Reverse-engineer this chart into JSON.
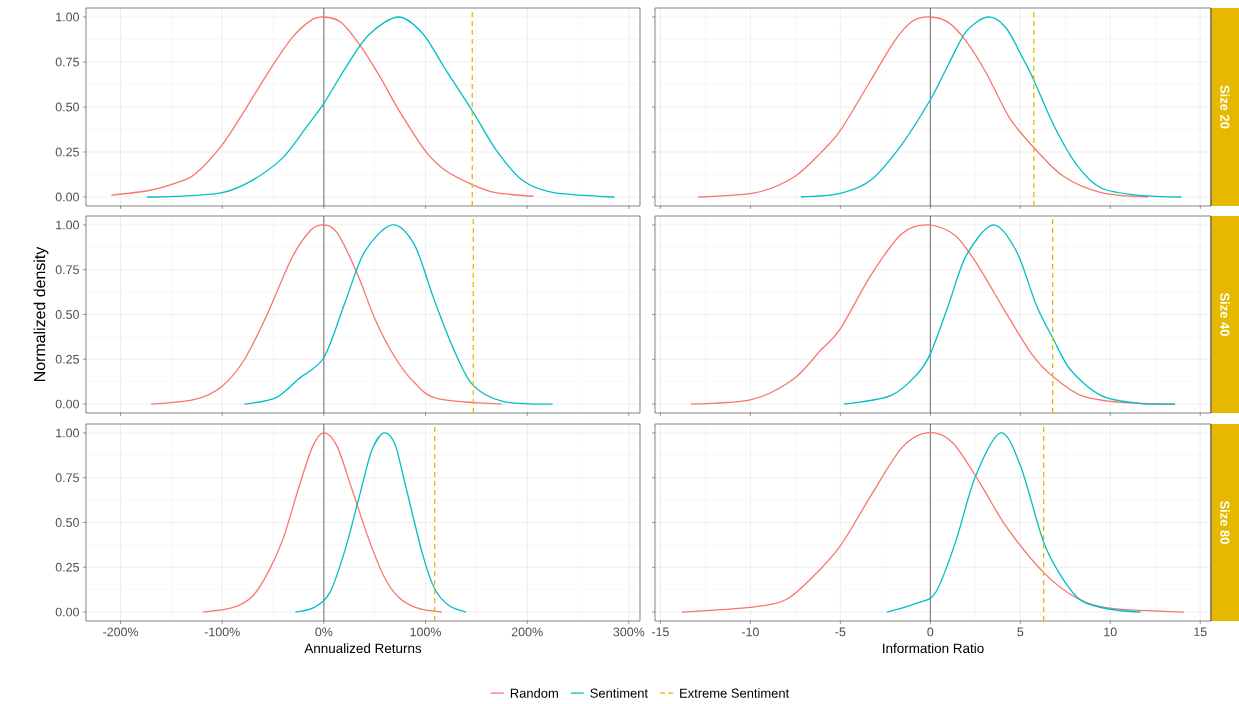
{
  "chart_data": [
    {
      "type": "line",
      "xlim": [
        -234,
        311
      ],
      "ylim": [
        -0.05,
        1.05
      ],
      "grid": true,
      "tick_labels": "y",
      "xticks": [
        {
          "value": -200,
          "label": null
        },
        {
          "value": -100,
          "label": null
        },
        {
          "value": 0,
          "label": null
        },
        {
          "value": 100,
          "label": null
        },
        {
          "value": 200,
          "label": null
        },
        {
          "value": 300,
          "label": null
        }
      ],
      "yticks": [
        {
          "value": 0,
          "label": "0.00"
        },
        {
          "value": 0.25,
          "label": "0.25"
        },
        {
          "value": 0.5,
          "label": "0.50"
        },
        {
          "value": 0.75,
          "label": "0.75"
        },
        {
          "value": 1,
          "label": "1.00"
        }
      ],
      "ref_lines": [
        {
          "axis": "x",
          "value": 0,
          "color": "#4d4d4d"
        }
      ],
      "series": [
        {
          "color": "#f8766d",
          "x": [
            -209,
            -172,
            -146,
            -127,
            -100,
            -78,
            -55,
            -32,
            -13,
            0,
            17,
            36,
            55,
            74,
            100,
            119,
            147,
            169,
            206
          ],
          "values": [
            0.01,
            0.036,
            0.077,
            0.126,
            0.29,
            0.48,
            0.69,
            0.88,
            0.98,
            1.0,
            0.97,
            0.84,
            0.67,
            0.48,
            0.255,
            0.15,
            0.066,
            0.024,
            0.004
          ]
        },
        {
          "color": "#00bfc4",
          "x": [
            -174,
            -146,
            -100,
            -70,
            -40,
            -17,
            0,
            21,
            44,
            73,
            97,
            119,
            147,
            169,
            195,
            225,
            286
          ],
          "values": [
            0.0,
            0.003,
            0.024,
            0.094,
            0.22,
            0.39,
            0.52,
            0.715,
            0.9,
            1.0,
            0.91,
            0.715,
            0.47,
            0.265,
            0.094,
            0.026,
            0.0
          ]
        },
        {
          "color": "#e7b800",
          "line_style": "dashed",
          "x": [
            146,
            146
          ],
          "values": [
            -0.05,
            1.05
          ]
        }
      ]
    },
    {
      "type": "line",
      "annotations": [
        "Size  20"
      ],
      "xlim": [
        -15.3,
        15.6
      ],
      "ylim": [
        -0.05,
        1.05
      ],
      "grid": true,
      "tick_labels": false,
      "xticks": [
        {
          "value": -15,
          "label": null
        },
        {
          "value": -10,
          "label": null
        },
        {
          "value": -5,
          "label": null
        },
        {
          "value": 0,
          "label": null
        },
        {
          "value": 5,
          "label": null
        },
        {
          "value": 10,
          "label": null
        },
        {
          "value": 15,
          "label": null
        }
      ],
      "yticks": [
        {
          "value": 0,
          "label": null
        },
        {
          "value": 0.25,
          "label": null
        },
        {
          "value": 0.5,
          "label": null
        },
        {
          "value": 0.75,
          "label": null
        },
        {
          "value": 1,
          "label": null
        }
      ],
      "ref_lines": [
        {
          "axis": "x",
          "value": 0,
          "color": "#4d4d4d"
        }
      ],
      "series": [
        {
          "color": "#f8766d",
          "x": [
            -12.9,
            -9.7,
            -7.6,
            -6.1,
            -5,
            -3.3,
            -2.0,
            -1.0,
            0,
            1.0,
            2.0,
            3.1,
            4.4,
            5.75,
            7.4,
            9.5,
            12.1
          ],
          "values": [
            0.0,
            0.024,
            0.11,
            0.245,
            0.37,
            0.65,
            0.865,
            0.976,
            1.0,
            0.97,
            0.865,
            0.69,
            0.44,
            0.275,
            0.115,
            0.024,
            0.0
          ]
        },
        {
          "color": "#00bfc4",
          "x": [
            -7.2,
            -5.0,
            -3.3,
            -1.6,
            0,
            1.0,
            2.0,
            3.2,
            4.2,
            5.2,
            5.75,
            6.9,
            8.2,
            9.5,
            11.6,
            13.95
          ],
          "values": [
            0.0,
            0.02,
            0.094,
            0.29,
            0.54,
            0.735,
            0.92,
            1.0,
            0.94,
            0.76,
            0.65,
            0.39,
            0.17,
            0.05,
            0.009,
            0.0
          ]
        },
        {
          "color": "#e7b800",
          "line_style": "dashed",
          "x": [
            5.75,
            5.75
          ],
          "values": [
            -0.05,
            1.05
          ]
        }
      ]
    },
    {
      "type": "line",
      "ylabel": "Normalized density",
      "xlim": [
        -234,
        311
      ],
      "ylim": [
        -0.05,
        1.05
      ],
      "grid": true,
      "tick_labels": "y",
      "xticks": [
        {
          "value": -200,
          "label": null
        },
        {
          "value": -100,
          "label": null
        },
        {
          "value": 0,
          "label": null
        },
        {
          "value": 100,
          "label": null
        },
        {
          "value": 200,
          "label": null
        },
        {
          "value": 300,
          "label": null
        }
      ],
      "yticks": [
        {
          "value": 0,
          "label": "0.00"
        },
        {
          "value": 0.25,
          "label": "0.25"
        },
        {
          "value": 0.5,
          "label": "0.50"
        },
        {
          "value": 0.75,
          "label": "0.75"
        },
        {
          "value": 1,
          "label": "1.00"
        }
      ],
      "ref_lines": [
        {
          "axis": "x",
          "value": 0,
          "color": "#4d4d4d"
        }
      ],
      "series": [
        {
          "color": "#f8766d",
          "x": [
            -170,
            -127,
            -100,
            -78,
            -55,
            -32,
            -13,
            0,
            13,
            32,
            51,
            70,
            89,
            112,
            175
          ],
          "values": [
            0.0,
            0.026,
            0.1,
            0.25,
            0.51,
            0.81,
            0.97,
            1.0,
            0.957,
            0.74,
            0.465,
            0.26,
            0.12,
            0.03,
            0.0
          ]
        },
        {
          "color": "#00bfc4",
          "x": [
            -78,
            -47,
            -25,
            0,
            21,
            40,
            67,
            89,
            108,
            127,
            146,
            176,
            225
          ],
          "values": [
            0.0,
            0.036,
            0.14,
            0.26,
            0.57,
            0.85,
            1.0,
            0.89,
            0.59,
            0.315,
            0.11,
            0.015,
            0.0
          ]
        },
        {
          "color": "#e7b800",
          "line_style": "dashed",
          "x": [
            147,
            147
          ],
          "values": [
            -0.05,
            1.05
          ]
        }
      ]
    },
    {
      "type": "line",
      "annotations": [
        "Size  40"
      ],
      "xlim": [
        -15.3,
        15.6
      ],
      "ylim": [
        -0.05,
        1.05
      ],
      "grid": true,
      "tick_labels": false,
      "xticks": [
        {
          "value": -15,
          "label": null
        },
        {
          "value": -10,
          "label": null
        },
        {
          "value": -5,
          "label": null
        },
        {
          "value": 0,
          "label": null
        },
        {
          "value": 5,
          "label": null
        },
        {
          "value": 10,
          "label": null
        },
        {
          "value": 15,
          "label": null
        }
      ],
      "yticks": [
        {
          "value": 0,
          "label": null
        },
        {
          "value": 0.25,
          "label": null
        },
        {
          "value": 0.5,
          "label": null
        },
        {
          "value": 0.75,
          "label": null
        },
        {
          "value": 1,
          "label": null
        }
      ],
      "ref_lines": [
        {
          "axis": "x",
          "value": 0,
          "color": "#4d4d4d"
        }
      ],
      "series": [
        {
          "color": "#f8766d",
          "x": [
            -13.3,
            -9.9,
            -7.6,
            -6.1,
            -5,
            -3.3,
            -1.6,
            -0.1,
            1.4,
            2.7,
            4.2,
            5.7,
            6.8,
            8.4,
            10.6,
            13.6
          ],
          "values": [
            0.0,
            0.026,
            0.14,
            0.3,
            0.42,
            0.72,
            0.95,
            1.0,
            0.94,
            0.765,
            0.51,
            0.27,
            0.155,
            0.047,
            0.009,
            0.0
          ]
        },
        {
          "color": "#00bfc4",
          "x": [
            -4.8,
            -2.2,
            -0.75,
            0,
            1.0,
            2.0,
            3.5,
            4.8,
            5.9,
            6.8,
            7.8,
            9.5,
            11.6,
            13.6
          ],
          "values": [
            0.0,
            0.047,
            0.165,
            0.28,
            0.55,
            0.83,
            1.0,
            0.85,
            0.55,
            0.37,
            0.19,
            0.047,
            0.004,
            0.0
          ]
        },
        {
          "color": "#e7b800",
          "line_style": "dashed",
          "x": [
            6.8,
            6.8
          ],
          "values": [
            -0.05,
            1.05
          ]
        }
      ]
    },
    {
      "type": "line",
      "xlabel": "Annualized Returns",
      "xlim": [
        -234,
        311
      ],
      "ylim": [
        -0.05,
        1.05
      ],
      "grid": true,
      "xticks": [
        {
          "value": -200,
          "label": "-200%"
        },
        {
          "value": -100,
          "label": "-100%"
        },
        {
          "value": 0,
          "label": "0%"
        },
        {
          "value": 100,
          "label": "100%"
        },
        {
          "value": 200,
          "label": "200%"
        },
        {
          "value": 300,
          "label": "300%"
        }
      ],
      "yticks": [
        {
          "value": 0,
          "label": "0.00"
        },
        {
          "value": 0.25,
          "label": "0.25"
        },
        {
          "value": 0.5,
          "label": "0.50"
        },
        {
          "value": 0.75,
          "label": "0.75"
        },
        {
          "value": 1,
          "label": "1.00"
        }
      ],
      "ref_lines": [
        {
          "axis": "x",
          "value": 0,
          "color": "#4d4d4d"
        }
      ],
      "series": [
        {
          "color": "#f8766d",
          "x": [
            -119,
            -89,
            -70,
            -55,
            -40,
            -25,
            -11,
            0,
            13,
            28,
            44,
            59,
            74,
            93,
            116
          ],
          "values": [
            0.0,
            0.026,
            0.09,
            0.22,
            0.41,
            0.69,
            0.925,
            1.0,
            0.925,
            0.68,
            0.41,
            0.2,
            0.08,
            0.02,
            0.0
          ]
        },
        {
          "color": "#00bfc4",
          "x": [
            -28,
            -9.5,
            6,
            21,
            36,
            47,
            59,
            70,
            81,
            97,
            109,
            123,
            140
          ],
          "values": [
            0.0,
            0.026,
            0.11,
            0.35,
            0.67,
            0.9,
            1.0,
            0.935,
            0.69,
            0.325,
            0.13,
            0.036,
            0.0
          ]
        },
        {
          "color": "#e7b800",
          "line_style": "dashed",
          "x": [
            109,
            109
          ],
          "values": [
            -0.05,
            1.05
          ]
        }
      ]
    },
    {
      "type": "line",
      "annotations": [
        "Size  80"
      ],
      "xlabel": "Information Ratio",
      "xlim": [
        -15.3,
        15.6
      ],
      "ylim": [
        -0.05,
        1.05
      ],
      "grid": true,
      "tick_labels": "x",
      "legend": "bottom",
      "xticks": [
        -15,
        -10,
        -5,
        0,
        5,
        10,
        15
      ],
      "yticks": [
        {
          "value": 0,
          "label": null
        },
        {
          "value": 0.25,
          "label": null
        },
        {
          "value": 0.5,
          "label": null
        },
        {
          "value": 0.75,
          "label": null
        },
        {
          "value": 1,
          "label": null
        }
      ],
      "ref_lines": [
        {
          "axis": "x",
          "value": 0,
          "color": "#4d4d4d"
        }
      ],
      "series": [
        {
          "name": "Random",
          "color": "#f8766d",
          "x": [
            -13.8,
            -9.9,
            -8.0,
            -6.5,
            -5,
            -3.3,
            -1.6,
            -0.2,
            1.2,
            2.7,
            4.2,
            6.3,
            8.2,
            10.1,
            14.1
          ],
          "values": [
            0.0,
            0.028,
            0.07,
            0.2,
            0.37,
            0.65,
            0.915,
            1.0,
            0.95,
            0.73,
            0.48,
            0.22,
            0.075,
            0.02,
            0.0
          ]
        },
        {
          "name": "Sentiment",
          "color": "#00bfc4",
          "x": [
            -2.4,
            -0.75,
            0.3,
            1.4,
            2.5,
            3.9,
            5.0,
            6.3,
            7.4,
            8.4,
            9.9,
            11.7
          ],
          "values": [
            0.0,
            0.05,
            0.11,
            0.39,
            0.755,
            1.0,
            0.82,
            0.39,
            0.18,
            0.064,
            0.017,
            0.0
          ]
        },
        {
          "name": "Extreme Sentiment",
          "color": "#e7b800",
          "line_style": "dashed",
          "x": [
            6.3,
            6.3
          ],
          "values": [
            -0.05,
            1.05
          ]
        }
      ]
    }
  ]
}
